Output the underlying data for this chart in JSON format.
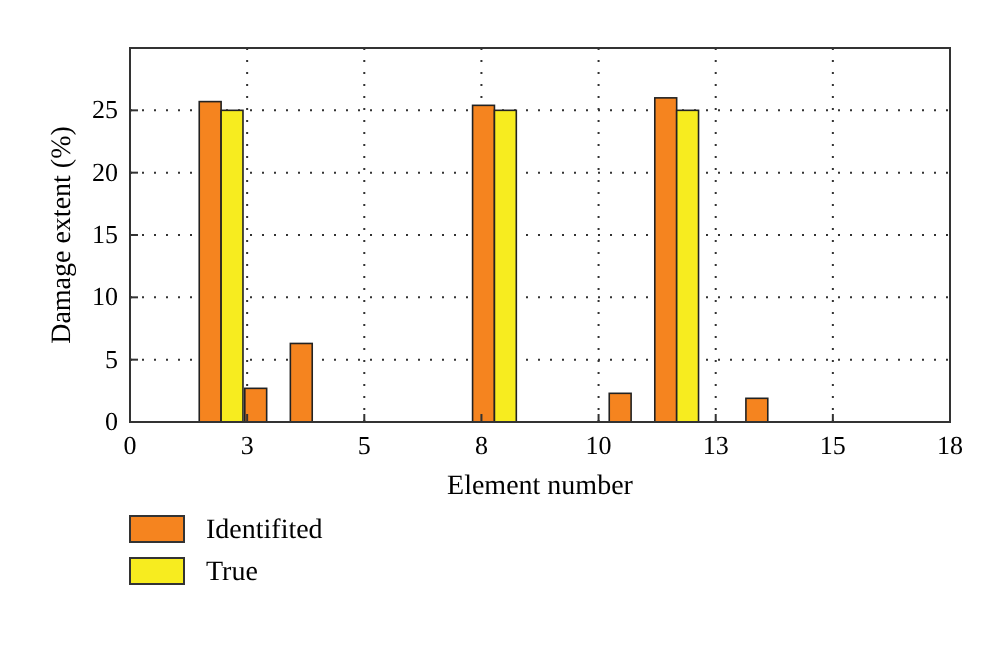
{
  "chart_data": {
    "type": "bar",
    "xlabel": "Element number",
    "ylabel": "Damage extent (%)",
    "x": [
      1,
      2,
      3,
      4,
      5,
      6,
      7,
      8,
      9,
      10,
      11,
      12,
      13,
      14,
      15,
      16,
      17
    ],
    "series": [
      {
        "name": "Identifited",
        "color": "#f5841f",
        "values": [
          0,
          25.7,
          2.7,
          6.3,
          0,
          0,
          0,
          25.4,
          0,
          0,
          2.3,
          26,
          0,
          1.9,
          0,
          0,
          0
        ]
      },
      {
        "name": "True",
        "color": "#f7ec1f",
        "values": [
          0,
          25,
          0,
          0,
          0,
          0,
          0,
          25,
          0,
          0,
          0,
          25,
          0,
          0,
          0,
          0,
          0
        ]
      }
    ],
    "xlim": [
      0,
      18
    ],
    "xticks": [
      0,
      {
        "value": 2.5714,
        "label": "3"
      },
      {
        "value": 5.1429,
        "label": "5"
      },
      {
        "value": 7.7143,
        "label": "8"
      },
      {
        "value": 10.2857,
        "label": "10"
      },
      {
        "value": 12.8571,
        "label": "13"
      },
      {
        "value": 15.4286,
        "label": "15"
      },
      18
    ],
    "ylim": [
      0,
      30
    ],
    "yticks": [
      0,
      5,
      10,
      15,
      20,
      25,
      {
        "value": 30,
        "label": null
      }
    ],
    "grid": true,
    "legend": "bottom left"
  }
}
